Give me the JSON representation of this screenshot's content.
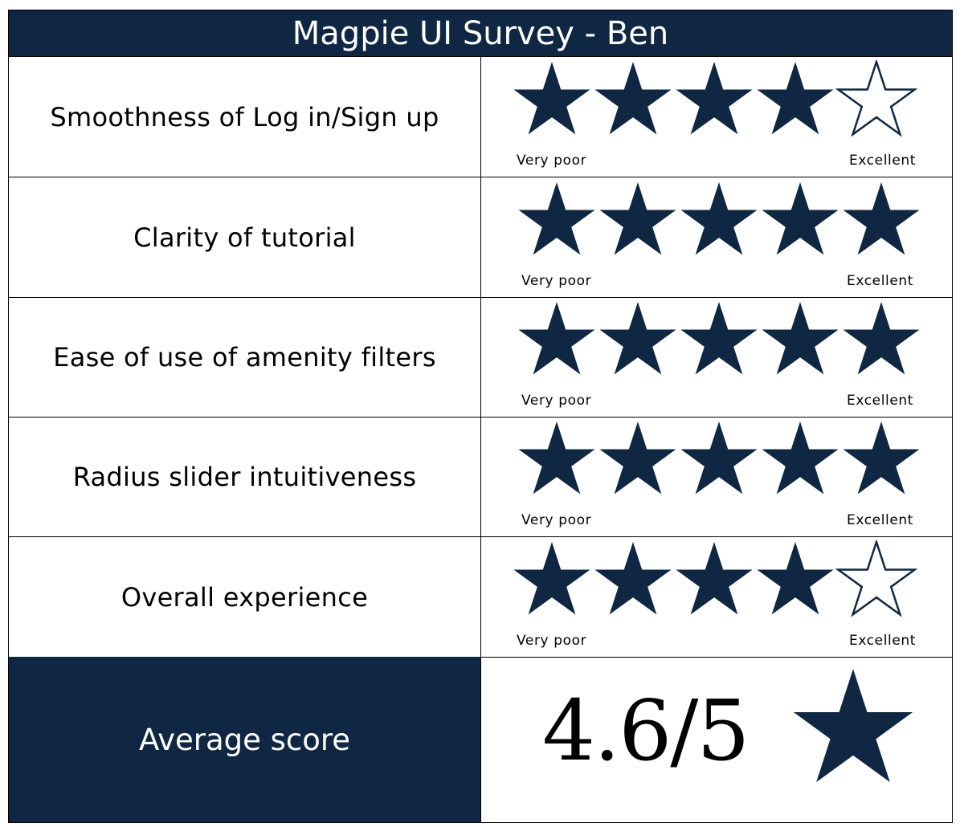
{
  "title": "Magpie UI Survey - Ben",
  "colors": {
    "header_bg": "#0f2742",
    "star_fill": "#0f2742",
    "header_text": "#ffffff"
  },
  "scale": {
    "low_label": "Very  poor",
    "high_label": "Excellent",
    "max_stars": 5
  },
  "questions": [
    {
      "label": "Smoothness of Log in/Sign up",
      "rating": 4
    },
    {
      "label": "Clarity of tutorial",
      "rating": 5
    },
    {
      "label": "Ease of use of amenity filters",
      "rating": 5
    },
    {
      "label": "Radius slider intuitiveness",
      "rating": 5
    },
    {
      "label": "Overall experience",
      "rating": 4
    }
  ],
  "average": {
    "label": "Average score",
    "value": "4.6/5",
    "star_icon": "filled-star-icon"
  }
}
